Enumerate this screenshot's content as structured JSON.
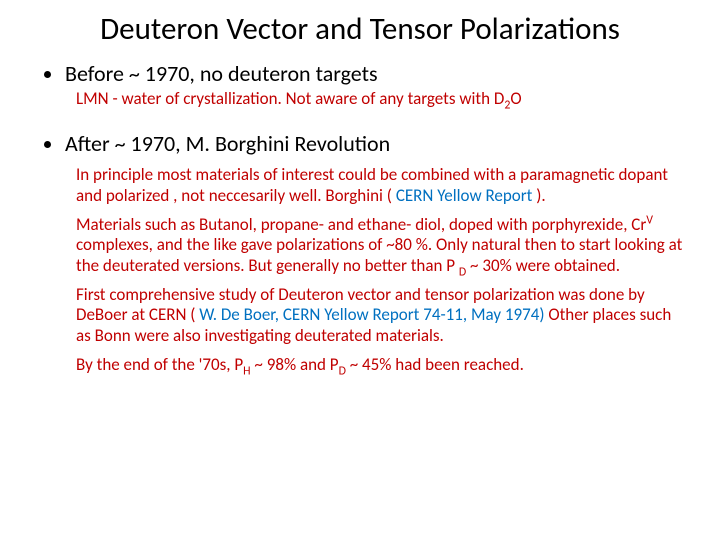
{
  "title": "Deuteron Vector and Tensor Polarizations",
  "bullet1": "Before  ~ 1970, no deuteron targets",
  "sub1_pre": "LMN -  water of crystallization. Not aware of  any targets with D",
  "sub1_sub": "2",
  "sub1_post": "O",
  "bullet2": " After  ~ 1970, M. Borghini Revolution",
  "para1_a": " In principle most materials of interest could be combined with a paramagnetic dopant and polarized , not neccesarily well.  Borghini  ( ",
  "para1_blue": "CERN Yellow Report          ",
  "para1_b": ").",
  "para2_a": " Materials such as   Butanol, propane- and ethane- diol, doped with porphyrexide, Cr",
  "para2_sup": "V",
  "para2_b": " complexes, and the like gave polarizations of  ~80 %. Only natural then to  start looking at the deuterated versions.  But generally no better than  P ",
  "para2_dsub": "D",
  "para2_c": " ~ 30% were obtained.",
  "para3_a": " First comprehensive study of Deuteron  vector and  tensor polarization was done by DeBoer at CERN ( ",
  "para3_blue": "W. De Boer, CERN Yellow Report 74-11, May 1974)",
  "para3_b": " Other places such as Bonn were also investigating deuterated materials.",
  "para4_a": " By the end of the '70s,   P",
  "para4_hsub": "H",
  "para4_b": "  ~ 98% and P",
  "para4_dsub": "D",
  "para4_c": "  ~ 45% had been reached.",
  "colors": {
    "text": "#000000",
    "red": "#c00000",
    "blue": "#0070c0",
    "background": "#ffffff"
  },
  "fontsizes": {
    "title": 31,
    "bullet": 22,
    "sub": 17
  }
}
